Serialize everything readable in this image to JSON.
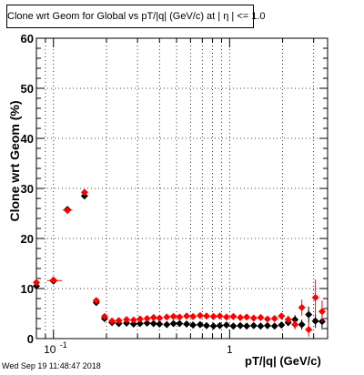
{
  "canvas": {
    "background": "#ffffff"
  },
  "timestamp": "Wed Sep 19 11:48:47 2018",
  "chart_data": {
    "type": "scatter",
    "title_prefix": "Clone wrt Geom for Global vs pT/|q| (GeV/c) at |",
    "title_eta": "η",
    "title_suffix": "| <= 1.0",
    "xlabel": "pT/|q| (GeV/c)",
    "ylabel": "Clone wrt Geom (%)",
    "x_scale": "log",
    "xlim": [
      0.08,
      3.6
    ],
    "ylim": [
      0,
      60
    ],
    "x_tick_labels": [
      {
        "value": 0.1,
        "label": "10",
        "exp": "-1"
      },
      {
        "value": 1,
        "label": "1",
        "exp": ""
      }
    ],
    "y_ticks": [
      0,
      10,
      20,
      30,
      40,
      50,
      60
    ],
    "grid": true,
    "series": [
      {
        "color": "#000000",
        "marker": "diamond",
        "x": [
          0.08,
          0.1,
          0.12,
          0.15,
          0.175,
          0.195,
          0.215,
          0.235,
          0.26,
          0.285,
          0.31,
          0.34,
          0.37,
          0.4,
          0.44,
          0.48,
          0.52,
          0.57,
          0.62,
          0.68,
          0.74,
          0.81,
          0.88,
          0.96,
          1.05,
          1.15,
          1.25,
          1.37,
          1.5,
          1.64,
          1.8,
          1.97,
          2.15,
          2.35,
          2.57,
          2.81,
          3.07,
          3.35
        ],
        "y": [
          10.5,
          11.5,
          25.8,
          28.5,
          7.2,
          4.0,
          3.2,
          3.0,
          3.1,
          2.9,
          3.0,
          3.1,
          3.0,
          2.9,
          2.8,
          3.0,
          3.0,
          2.9,
          2.7,
          2.8,
          2.6,
          2.5,
          2.6,
          2.7,
          2.5,
          2.6,
          2.5,
          2.6,
          2.5,
          2.6,
          2.5,
          2.7,
          3.2,
          3.8,
          2.8,
          4.8,
          3.5,
          3.4
        ],
        "err": [
          0.8,
          0.4,
          0.6,
          0.6,
          0.4,
          0.3,
          0.2,
          0.2,
          0.2,
          0.2,
          0.2,
          0.2,
          0.2,
          0.2,
          0.2,
          0.2,
          0.2,
          0.2,
          0.2,
          0.2,
          0.2,
          0.2,
          0.2,
          0.2,
          0.2,
          0.2,
          0.3,
          0.3,
          0.3,
          0.3,
          0.4,
          0.4,
          0.6,
          0.9,
          1.0,
          1.6,
          1.4,
          1.6
        ]
      },
      {
        "color": "#ff0000",
        "marker": "diamond",
        "x": [
          0.08,
          0.1,
          0.12,
          0.15,
          0.175,
          0.195,
          0.215,
          0.235,
          0.26,
          0.285,
          0.31,
          0.34,
          0.37,
          0.4,
          0.44,
          0.48,
          0.52,
          0.57,
          0.62,
          0.68,
          0.74,
          0.81,
          0.88,
          0.96,
          1.05,
          1.15,
          1.25,
          1.37,
          1.5,
          1.64,
          1.8,
          1.97,
          2.15,
          2.35,
          2.57,
          2.81,
          3.07,
          3.35
        ],
        "y": [
          11.2,
          11.7,
          25.6,
          29.2,
          7.6,
          4.4,
          3.5,
          3.6,
          3.8,
          3.7,
          3.9,
          4.0,
          4.2,
          4.1,
          4.3,
          4.4,
          4.3,
          4.5,
          4.4,
          4.6,
          4.5,
          4.4,
          4.5,
          4.3,
          4.4,
          4.2,
          4.3,
          4.1,
          4.2,
          3.9,
          4.0,
          4.5,
          3.8,
          2.8,
          6.2,
          1.8,
          8.2,
          5.4
        ],
        "err": [
          0.8,
          0.4,
          0.6,
          0.6,
          0.4,
          0.3,
          0.2,
          0.2,
          0.2,
          0.2,
          0.2,
          0.2,
          0.2,
          0.2,
          0.2,
          0.2,
          0.2,
          0.2,
          0.2,
          0.2,
          0.2,
          0.2,
          0.2,
          0.2,
          0.3,
          0.3,
          0.3,
          0.3,
          0.4,
          0.4,
          0.5,
          0.6,
          0.8,
          1.0,
          1.6,
          1.4,
          3.6,
          2.2
        ]
      }
    ]
  }
}
